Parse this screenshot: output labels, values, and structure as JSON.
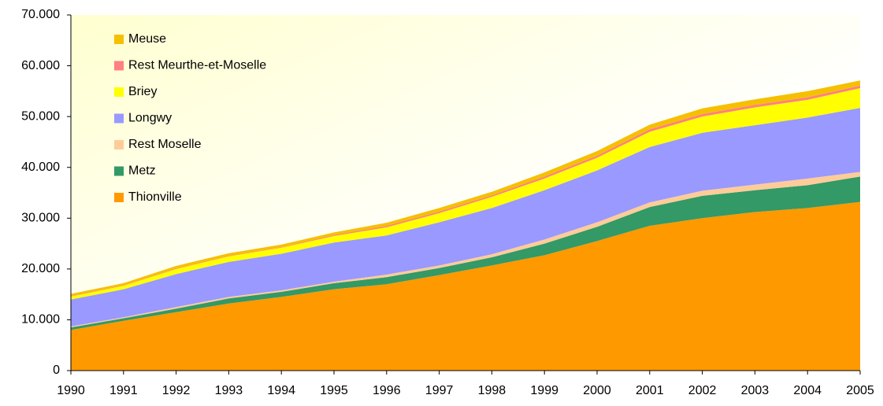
{
  "chart_data": {
    "type": "stacked_area",
    "x": [
      1990,
      1991,
      1992,
      1993,
      1994,
      1995,
      1996,
      1997,
      1998,
      1999,
      2000,
      2001,
      2002,
      2003,
      2004,
      2005
    ],
    "xlim": [
      1990,
      2005
    ],
    "xticks": [
      1990,
      1991,
      1992,
      1993,
      1994,
      1995,
      1996,
      1997,
      1998,
      1999,
      2000,
      2001,
      2002,
      2003,
      2004,
      2005
    ],
    "ylim": [
      0,
      70000
    ],
    "yticks": [
      0,
      {
        "value": 10000,
        "label": "10.000"
      },
      {
        "value": 20000,
        "label": "20.000"
      },
      {
        "value": 30000,
        "label": "30.000"
      },
      {
        "value": 40000,
        "label": "40.000"
      },
      {
        "value": 50000,
        "label": "50.000"
      },
      {
        "value": 60000,
        "label": "60.000"
      },
      {
        "value": 70000,
        "label": "70.000"
      }
    ],
    "legend": "top-left",
    "series": [
      {
        "name": "Thionville",
        "color": "#ff9900",
        "values": [
          8000,
          9800,
          11500,
          13200,
          14500,
          16000,
          17000,
          18800,
          20700,
          22700,
          25500,
          28500,
          30000,
          31200,
          32000,
          33200
        ]
      },
      {
        "name": "Metz",
        "color": "#339966",
        "values": [
          500,
          500,
          700,
          1000,
          1000,
          1200,
          1400,
          1400,
          1600,
          2300,
          2800,
          3700,
          4400,
          4300,
          4500,
          5000
        ]
      },
      {
        "name": "Rest Moselle",
        "color": "#ffcc99",
        "values": [
          200,
          200,
          300,
          300,
          300,
          300,
          500,
          500,
          600,
          800,
          900,
          900,
          1000,
          1100,
          1300,
          900
        ]
      },
      {
        "name": "Longwy",
        "color": "#9999ff",
        "values": [
          5300,
          5500,
          6500,
          6900,
          7200,
          7700,
          7700,
          8500,
          9100,
          9700,
          10200,
          10900,
          11400,
          11700,
          12000,
          12600
        ]
      },
      {
        "name": "Briey",
        "color": "#ffff00",
        "values": [
          600,
          700,
          1000,
          1100,
          1200,
          1300,
          1600,
          1800,
          2200,
          2300,
          2500,
          3000,
          3200,
          3500,
          3500,
          3900
        ]
      },
      {
        "name": "Rest Meurthe-et-Moselle",
        "color": "#ff8080",
        "values": [
          100,
          100,
          100,
          100,
          100,
          200,
          300,
          300,
          300,
          400,
          400,
          500,
          500,
          500,
          500,
          500
        ]
      },
      {
        "name": "Meuse",
        "color": "#f5c000",
        "values": [
          400,
          400,
          500,
          500,
          500,
          500,
          600,
          700,
          700,
          800,
          900,
          900,
          1100,
          1100,
          1200,
          1000
        ]
      }
    ]
  }
}
